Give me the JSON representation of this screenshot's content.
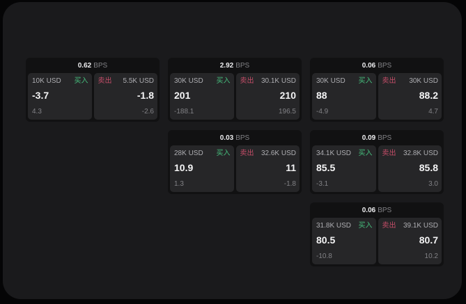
{
  "labels": {
    "bps_unit": "BPS",
    "buy": "买入",
    "sell": "卖出"
  },
  "colors": {
    "page_bg": "#050506",
    "panel_bg": "#1a1a1c",
    "card_bg": "#111112",
    "tile_bg": "#262628",
    "buy_green": "#46be7d",
    "sell_red": "#c44d68",
    "price_white": "#f4f4f5",
    "muted_gray": "#828286"
  },
  "cards": [
    {
      "bps": "0.62",
      "buy": {
        "amount": "10K USD",
        "price": "-3.7",
        "sub": "4.3"
      },
      "sell": {
        "amount": "5.5K USD",
        "price": "-1.8",
        "sub": "-2.6"
      }
    },
    {
      "bps": "2.92",
      "buy": {
        "amount": "30K USD",
        "price": "201",
        "sub": "-188.1"
      },
      "sell": {
        "amount": "30.1K USD",
        "price": "210",
        "sub": "196.5"
      }
    },
    {
      "bps": "0.06",
      "buy": {
        "amount": "30K USD",
        "price": "88",
        "sub": "-4.9"
      },
      "sell": {
        "amount": "30K USD",
        "price": "88.2",
        "sub": "4.7"
      }
    },
    {
      "bps": "0.03",
      "buy": {
        "amount": "28K USD",
        "price": "10.9",
        "sub": "1.3"
      },
      "sell": {
        "amount": "32.6K USD",
        "price": "11",
        "sub": "-1.8"
      }
    },
    {
      "bps": "0.09",
      "buy": {
        "amount": "34.1K USD",
        "price": "85.5",
        "sub": "-3.1"
      },
      "sell": {
        "amount": "32.8K USD",
        "price": "85.8",
        "sub": "3.0"
      }
    },
    {
      "bps": "0.06",
      "buy": {
        "amount": "31.8K USD",
        "price": "80.5",
        "sub": "-10.8"
      },
      "sell": {
        "amount": "39.1K USD",
        "price": "80.7",
        "sub": "10.2"
      }
    }
  ]
}
